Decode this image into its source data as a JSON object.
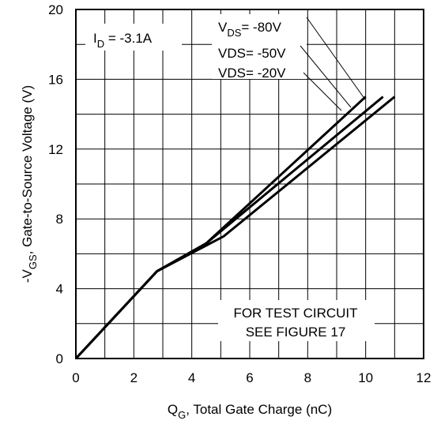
{
  "chart_data": {
    "type": "line",
    "xlabel": {
      "main": "Q",
      "sub": "G",
      "rest": ", Total Gate Charge (nC)"
    },
    "ylabel": {
      "pre": "-V",
      "sub": "GS",
      "rest": ", Gate-to-Source Voltage (V)"
    },
    "xlim": [
      0,
      12
    ],
    "ylim": [
      0,
      20
    ],
    "xticks": [
      "0",
      "2",
      "4",
      "6",
      "8",
      "10",
      "12"
    ],
    "yticks": [
      "0",
      "4",
      "8",
      "12",
      "16",
      "20"
    ],
    "grid": true,
    "series": [
      {
        "name": "V_DS = -80V",
        "x": [
          0,
          2.8,
          5.1,
          11.0
        ],
        "y": [
          0,
          5.0,
          7.0,
          15.0
        ]
      },
      {
        "name": "VDS = -50V",
        "x": [
          0,
          2.8,
          4.5,
          10.6
        ],
        "y": [
          0,
          5.0,
          6.6,
          15.0
        ]
      },
      {
        "name": "VDS = -20V",
        "x": [
          0,
          2.8,
          4.5,
          10.0
        ],
        "y": [
          0,
          5.0,
          6.6,
          15.0
        ]
      }
    ],
    "annotations": {
      "id_label": {
        "main": "I",
        "sub": "D",
        "rest": " = -3.1A"
      },
      "vds_80": {
        "main": "V",
        "sub": "DS",
        "rest": "= -80V"
      },
      "vds_50": "VDS= -50V",
      "vds_20": "VDS= -20V",
      "test_line1": "FOR TEST CIRCUIT",
      "test_line2": "SEE FIGURE 17"
    }
  }
}
